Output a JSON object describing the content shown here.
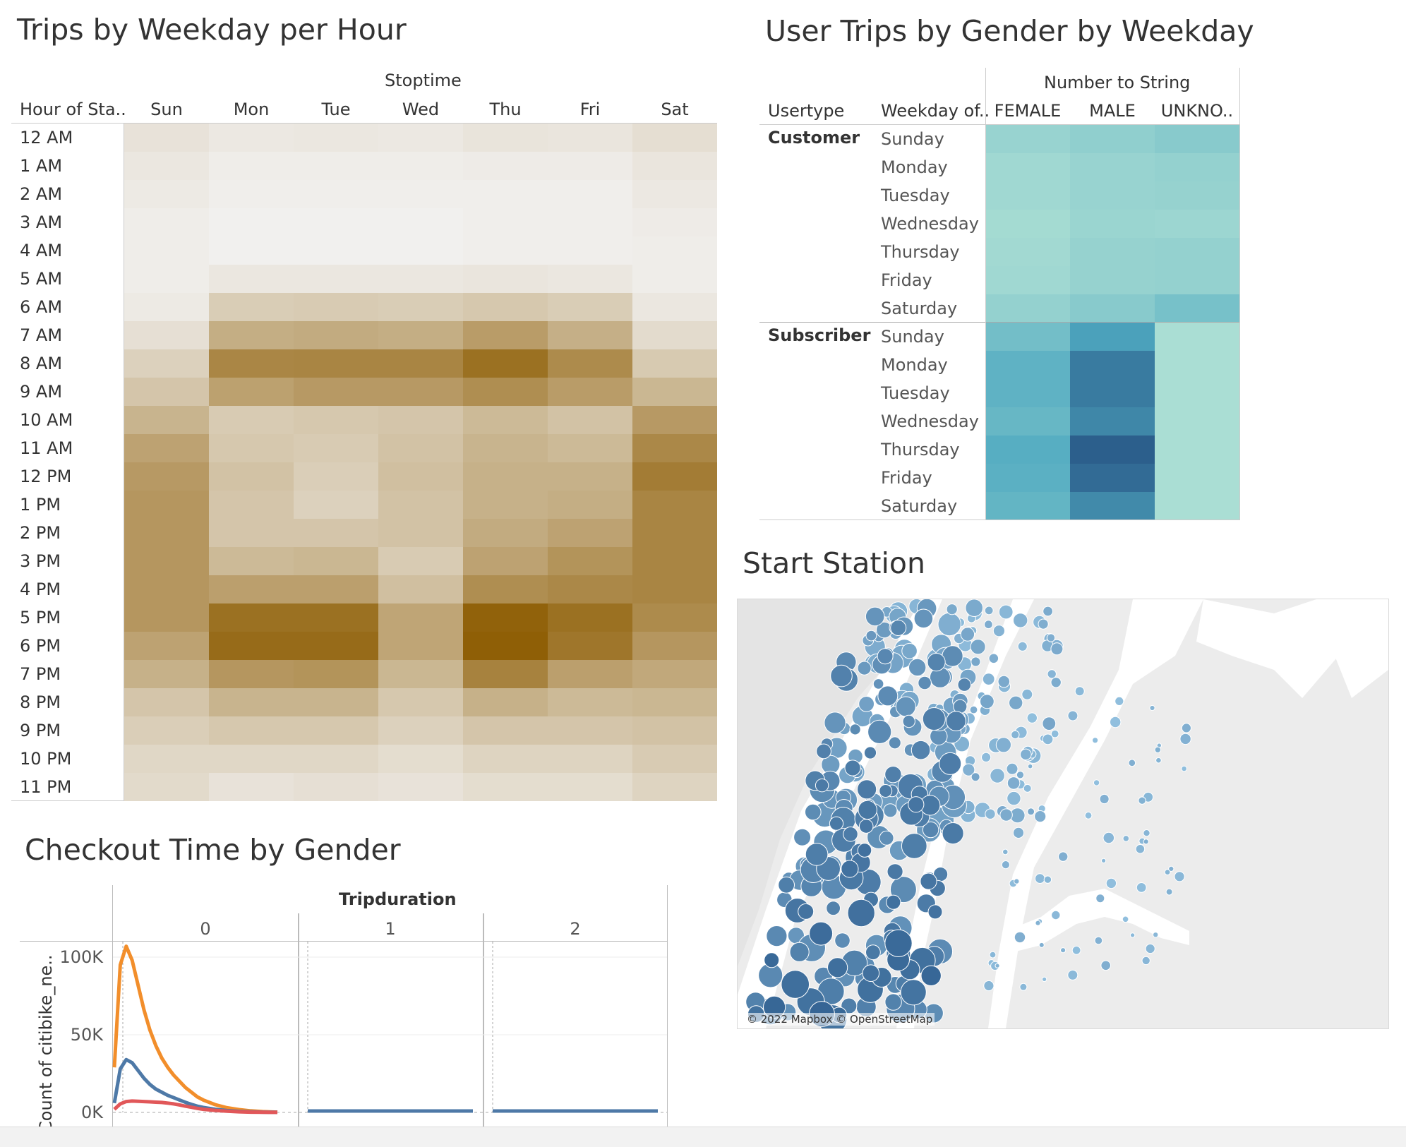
{
  "heatmap1": {
    "title": "Trips by Weekday per Hour",
    "column_group": "Stoptime",
    "row_header": "Hour of Sta..",
    "columns": [
      "Sun",
      "Mon",
      "Tue",
      "Wed",
      "Thu",
      "Fri",
      "Sat"
    ],
    "rows": [
      "12 AM",
      "1 AM",
      "2 AM",
      "3 AM",
      "4 AM",
      "5 AM",
      "6 AM",
      "7 AM",
      "8 AM",
      "9 AM",
      "10 AM",
      "11 AM",
      "12 PM",
      "1 PM",
      "2 PM",
      "3 PM",
      "4 PM",
      "5 PM",
      "6 PM",
      "7 PM",
      "8 PM",
      "9 PM",
      "10 PM",
      "11 PM"
    ],
    "intensity": [
      [
        0.1,
        0.06,
        0.07,
        0.06,
        0.09,
        0.08,
        0.13
      ],
      [
        0.07,
        0.03,
        0.03,
        0.03,
        0.04,
        0.04,
        0.08
      ],
      [
        0.05,
        0.02,
        0.02,
        0.02,
        0.02,
        0.02,
        0.06
      ],
      [
        0.03,
        0.01,
        0.01,
        0.01,
        0.02,
        0.02,
        0.04
      ],
      [
        0.03,
        0.01,
        0.01,
        0.01,
        0.02,
        0.02,
        0.03
      ],
      [
        0.03,
        0.07,
        0.07,
        0.07,
        0.08,
        0.07,
        0.03
      ],
      [
        0.05,
        0.25,
        0.26,
        0.25,
        0.28,
        0.25,
        0.07
      ],
      [
        0.12,
        0.46,
        0.48,
        0.46,
        0.58,
        0.45,
        0.15
      ],
      [
        0.22,
        0.73,
        0.74,
        0.74,
        0.88,
        0.7,
        0.27
      ],
      [
        0.3,
        0.55,
        0.6,
        0.6,
        0.68,
        0.58,
        0.4
      ],
      [
        0.42,
        0.26,
        0.28,
        0.3,
        0.38,
        0.32,
        0.6
      ],
      [
        0.54,
        0.28,
        0.26,
        0.32,
        0.42,
        0.38,
        0.72
      ],
      [
        0.6,
        0.32,
        0.24,
        0.34,
        0.44,
        0.44,
        0.8
      ],
      [
        0.62,
        0.3,
        0.22,
        0.32,
        0.44,
        0.46,
        0.74
      ],
      [
        0.62,
        0.3,
        0.3,
        0.32,
        0.48,
        0.54,
        0.74
      ],
      [
        0.62,
        0.38,
        0.4,
        0.26,
        0.54,
        0.64,
        0.74
      ],
      [
        0.62,
        0.56,
        0.56,
        0.34,
        0.68,
        0.72,
        0.74
      ],
      [
        0.62,
        0.88,
        0.88,
        0.52,
        0.98,
        0.88,
        0.7
      ],
      [
        0.54,
        0.92,
        0.92,
        0.52,
        1.0,
        0.84,
        0.62
      ],
      [
        0.44,
        0.62,
        0.64,
        0.4,
        0.76,
        0.56,
        0.5
      ],
      [
        0.3,
        0.42,
        0.42,
        0.28,
        0.44,
        0.38,
        0.4
      ],
      [
        0.24,
        0.28,
        0.28,
        0.22,
        0.3,
        0.3,
        0.32
      ],
      [
        0.18,
        0.18,
        0.18,
        0.14,
        0.2,
        0.2,
        0.26
      ],
      [
        0.16,
        0.1,
        0.12,
        0.1,
        0.14,
        0.14,
        0.2
      ]
    ]
  },
  "heatmap2": {
    "title": "User Trips by Gender by Weekday",
    "column_group": "Number to String",
    "row_header_1": "Usertype",
    "row_header_2": "Weekday of..",
    "columns": [
      "FEMALE",
      "MALE",
      "UNKNO.."
    ],
    "groups": [
      {
        "usertype": "Customer",
        "days": [
          "Sunday",
          "Monday",
          "Tuesday",
          "Wednesday",
          "Thursday",
          "Friday",
          "Saturday"
        ],
        "intensity": [
          [
            0.14,
            0.18,
            0.22
          ],
          [
            0.1,
            0.14,
            0.16
          ],
          [
            0.1,
            0.14,
            0.15
          ],
          [
            0.08,
            0.13,
            0.12
          ],
          [
            0.09,
            0.15,
            0.16
          ],
          [
            0.1,
            0.15,
            0.16
          ],
          [
            0.16,
            0.22,
            0.3
          ]
        ]
      },
      {
        "usertype": "Subscriber",
        "days": [
          "Sunday",
          "Monday",
          "Tuesday",
          "Wednesday",
          "Thursday",
          "Friday",
          "Saturday"
        ],
        "intensity": [
          [
            0.32,
            0.55,
            0.05
          ],
          [
            0.42,
            0.8,
            0.05
          ],
          [
            0.42,
            0.8,
            0.05
          ],
          [
            0.38,
            0.72,
            0.05
          ],
          [
            0.46,
            0.98,
            0.05
          ],
          [
            0.44,
            0.9,
            0.05
          ],
          [
            0.4,
            0.7,
            0.05
          ]
        ]
      }
    ]
  },
  "line_chart": {
    "title": "Checkout Time by Gender",
    "column_group": "Tripduration",
    "panels": [
      "0",
      "1",
      "2"
    ],
    "y_title": "Count of citibike_ne..",
    "y_ticks": [
      "100K",
      "50K",
      "0K"
    ]
  },
  "map": {
    "title": "Start Station",
    "attribution": "© 2022 Mapbox © OpenStreetMap"
  },
  "chart_data": [
    {
      "type": "line",
      "title": "Checkout Time by Gender",
      "xlabel": "Tripduration",
      "ylabel": "Count of citibike_ne..",
      "ylim": [
        0,
        110000
      ],
      "panels": [
        "0",
        "1",
        "2"
      ],
      "x": [
        0,
        2,
        4,
        6,
        8,
        10,
        12,
        14,
        16,
        18,
        20,
        22,
        24,
        26,
        28,
        30,
        34,
        38,
        42,
        46,
        50,
        55
      ],
      "series": [
        {
          "color": "#f28e2b",
          "values": [
            29000,
            95000,
            107000,
            98000,
            82000,
            66000,
            53000,
            43000,
            35000,
            29000,
            24000,
            20000,
            16000,
            13000,
            10000,
            8000,
            5000,
            3000,
            1800,
            1000,
            500,
            200
          ]
        },
        {
          "color": "#4e79a7",
          "values": [
            6000,
            28000,
            34000,
            32000,
            27000,
            22000,
            18000,
            15000,
            13000,
            11000,
            9500,
            8000,
            6500,
            5200,
            4000,
            3200,
            2000,
            1200,
            700,
            400,
            200,
            100
          ]
        },
        {
          "color": "#e15759",
          "values": [
            2000,
            5500,
            7000,
            7300,
            7200,
            7000,
            6800,
            6600,
            6400,
            6000,
            5500,
            4800,
            4000,
            3300,
            2600,
            2000,
            1300,
            800,
            400,
            200,
            100,
            50
          ]
        }
      ]
    }
  ],
  "colors": {
    "heat_brown": "#8f5f06",
    "heat_teal": "#2b5c8a",
    "map_bubble": "#4e86c4"
  }
}
